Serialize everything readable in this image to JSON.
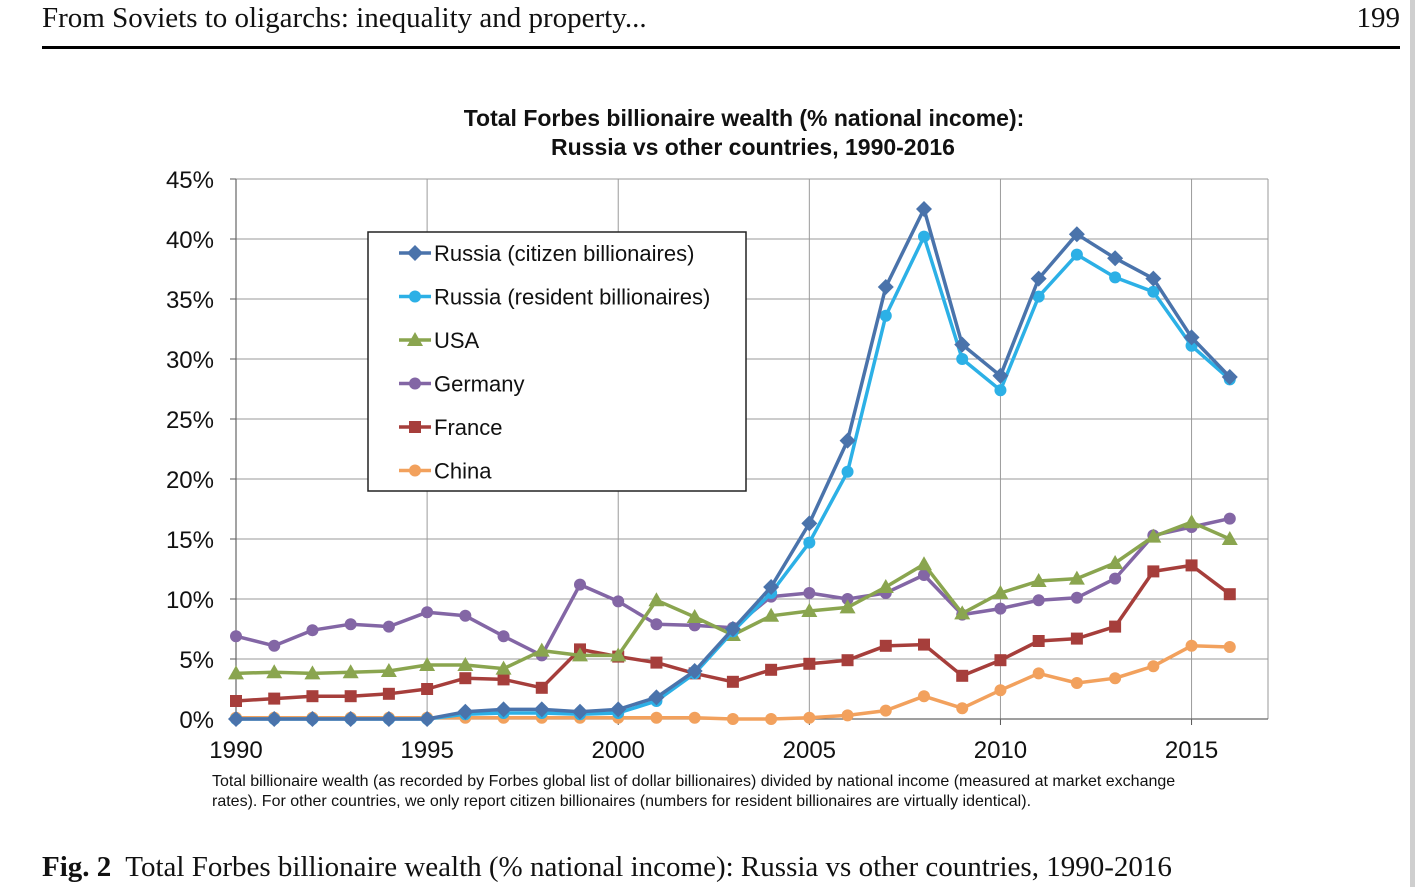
{
  "header": {
    "running_title": "From Soviets to oligarchs: inequality and property...",
    "page_number": "199"
  },
  "figure": {
    "label": "Fig. 2",
    "caption": "Total Forbes billionaire wealth (% national income): Russia vs other countries, 1990-2016"
  },
  "chart_data": {
    "type": "line",
    "title_lines": [
      "Total Forbes billionaire wealth  (% national income):",
      "Russia vs other countries, 1990-2016"
    ],
    "note_lines": [
      "Total billionaire wealth (as recorded by Forbes global list of dollar billionaires) divided by national income (measured at market exchange",
      "rates). For other countries, we only report citizen billionaires (numbers for resident billionaires are virtually identical)."
    ],
    "xlabel": "",
    "ylabel": "",
    "x": [
      1990,
      1991,
      1992,
      1993,
      1994,
      1995,
      1996,
      1997,
      1998,
      1999,
      2000,
      2001,
      2002,
      2003,
      2004,
      2005,
      2006,
      2007,
      2008,
      2009,
      2010,
      2011,
      2012,
      2013,
      2014,
      2015,
      2016
    ],
    "xlim": [
      1990,
      2017
    ],
    "ylim": [
      0,
      45
    ],
    "x_ticks": [
      1990,
      1995,
      2000,
      2005,
      2010,
      2015
    ],
    "x_tick_labels": [
      "1990",
      "1995",
      "2000",
      "2005",
      "2010",
      "2015"
    ],
    "y_ticks": [
      0,
      5,
      10,
      15,
      20,
      25,
      30,
      35,
      40,
      45
    ],
    "y_tick_labels": [
      "0%",
      "5%",
      "10%",
      "15%",
      "20%",
      "25%",
      "30%",
      "35%",
      "40%",
      "45%"
    ],
    "grid": true,
    "legend_position": "upper-left",
    "series": [
      {
        "name": "Russia (citizen billionaires)",
        "color": "#4a73ab",
        "marker": "diamond",
        "values": [
          0,
          0,
          0,
          0,
          0,
          0,
          0.6,
          0.8,
          0.8,
          0.6,
          0.8,
          1.8,
          4.0,
          7.5,
          11.0,
          16.3,
          23.2,
          36.0,
          42.5,
          31.2,
          28.6,
          36.7,
          40.4,
          38.4,
          36.7,
          31.8,
          28.5
        ]
      },
      {
        "name": "Russia (resident billionaires)",
        "color": "#2cb0e6",
        "marker": "circle",
        "values": [
          0,
          0,
          0,
          0,
          0,
          0,
          0.4,
          0.5,
          0.5,
          0.4,
          0.5,
          1.5,
          3.8,
          7.3,
          10.5,
          14.7,
          20.6,
          33.6,
          40.2,
          30.0,
          27.4,
          35.2,
          38.7,
          36.8,
          35.6,
          31.1,
          28.3
        ]
      },
      {
        "name": "USA",
        "color": "#8aa54f",
        "marker": "triangle",
        "values": [
          3.8,
          3.9,
          3.8,
          3.9,
          4.0,
          4.5,
          4.5,
          4.2,
          5.7,
          5.3,
          5.3,
          9.9,
          8.5,
          7.0,
          8.6,
          9.0,
          9.3,
          11.0,
          12.9,
          8.8,
          10.5,
          11.5,
          11.7,
          13.0,
          15.2,
          16.4,
          15.0
        ]
      },
      {
        "name": "Germany",
        "color": "#8366a5",
        "marker": "circle",
        "values": [
          6.9,
          6.1,
          7.4,
          7.9,
          7.7,
          8.9,
          8.6,
          6.9,
          5.3,
          11.2,
          9.8,
          7.9,
          7.8,
          7.6,
          10.2,
          10.5,
          10.0,
          10.5,
          12.0,
          8.7,
          9.2,
          9.9,
          10.1,
          11.7,
          15.3,
          16.0,
          16.7
        ]
      },
      {
        "name": "France",
        "color": "#a63e3b",
        "marker": "square",
        "values": [
          1.5,
          1.7,
          1.9,
          1.9,
          2.1,
          2.5,
          3.4,
          3.3,
          2.6,
          5.8,
          5.2,
          4.7,
          3.8,
          3.1,
          4.1,
          4.6,
          4.9,
          6.1,
          6.2,
          3.6,
          4.9,
          6.5,
          6.7,
          7.7,
          12.3,
          12.8,
          10.4
        ]
      },
      {
        "name": "China",
        "color": "#f2a15d",
        "marker": "circle",
        "values": [
          0.1,
          0.1,
          0.1,
          0.1,
          0.1,
          0.1,
          0.1,
          0.1,
          0.1,
          0.1,
          0.1,
          0.1,
          0.1,
          0,
          0,
          0.1,
          0.3,
          0.7,
          1.9,
          0.9,
          2.4,
          3.8,
          3.0,
          3.4,
          4.4,
          6.1,
          6.0
        ]
      }
    ]
  }
}
